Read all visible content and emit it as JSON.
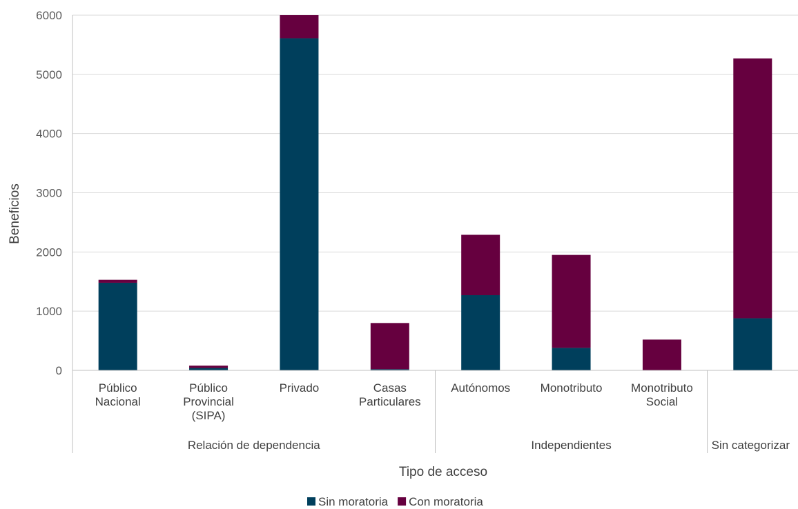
{
  "chart_data": {
    "type": "bar",
    "stacked": true,
    "categories": [
      [
        "Público",
        "Nacional"
      ],
      [
        "Público",
        "Provincial",
        "(SIPA)"
      ],
      [
        "Privado"
      ],
      [
        "Casas",
        "Particulares"
      ],
      [
        "Autónomos"
      ],
      [
        "Monotributo"
      ],
      [
        "Monotributo",
        "Social"
      ],
      [
        ""
      ]
    ],
    "groups": [
      {
        "label": "Relación de dependencia",
        "span": 4
      },
      {
        "label": "Independientes",
        "span": 3
      },
      {
        "label": "Sin categorizar",
        "span": 1
      }
    ],
    "series": [
      {
        "name": "Sin moratoria",
        "color": "#003f5c",
        "values": [
          1480,
          40,
          5610,
          20,
          1270,
          380,
          0,
          880
        ]
      },
      {
        "name": "Con moratoria",
        "color": "#66003f",
        "values": [
          50,
          40,
          390,
          780,
          1020,
          1570,
          520,
          4390
        ]
      }
    ],
    "ylabel": "Beneficios",
    "xlabel": "Tipo de acceso",
    "ylim": [
      0,
      6000
    ],
    "yticks": [
      0,
      1000,
      2000,
      3000,
      4000,
      5000,
      6000
    ],
    "grid": true,
    "legend_position": "bottom"
  }
}
